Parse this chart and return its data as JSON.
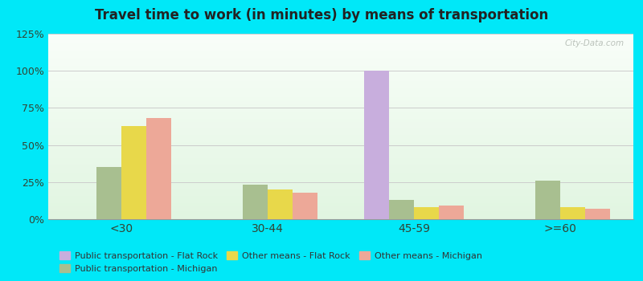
{
  "title": "Travel time to work (in minutes) by means of transportation",
  "categories": [
    "<30",
    "30-44",
    "45-59",
    ">=60"
  ],
  "series_order": [
    "Public transportation - Flat Rock",
    "Public transportation - Michigan",
    "Other means - Flat Rock",
    "Other means - Michigan"
  ],
  "series": {
    "Public transportation - Flat Rock": [
      0,
      0,
      100,
      0
    ],
    "Public transportation - Michigan": [
      35,
      23,
      13,
      26
    ],
    "Other means - Flat Rock": [
      63,
      20,
      8,
      8
    ],
    "Other means - Michigan": [
      68,
      18,
      9,
      7
    ]
  },
  "colors": {
    "Public transportation - Flat Rock": "#c8aedd",
    "Public transportation - Michigan": "#a8bf90",
    "Other means - Flat Rock": "#e8d84a",
    "Other means - Michigan": "#eda898"
  },
  "ylim": [
    0,
    125
  ],
  "yticks": [
    0,
    25,
    50,
    75,
    100,
    125
  ],
  "ytick_labels": [
    "0%",
    "25%",
    "50%",
    "75%",
    "100%",
    "125%"
  ],
  "outer_background": "#00e8f8",
  "bar_width": 0.17,
  "watermark": "City-Data.com",
  "legend_order": [
    "Public transportation - Flat Rock",
    "Public transportation - Michigan",
    "Other means - Flat Rock",
    "Other means - Michigan"
  ]
}
